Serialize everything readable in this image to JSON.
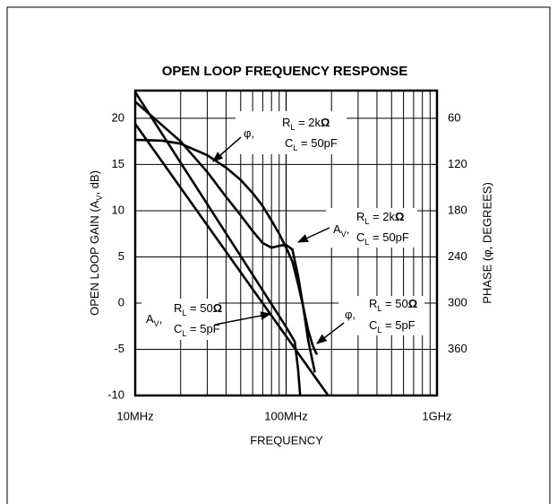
{
  "chart_data": {
    "type": "line",
    "title": "OPEN LOOP FREQUENCY RESPONSE",
    "xlabel": "FREQUENCY",
    "ylabel": [
      "OPEN LOOP GAIN (A",
      "V",
      ", dB)"
    ],
    "y2label": "PHASE (φ, DEGREES)",
    "xscale": "log",
    "xlim": [
      10,
      1000
    ],
    "xticks": [
      {
        "value": 10,
        "label": "10MHz"
      },
      {
        "value": 100,
        "label": "100MHz"
      },
      {
        "value": 1000,
        "label": "1GHz"
      }
    ],
    "ylim": [
      -10,
      23
    ],
    "yticks": [
      -10,
      -5,
      0,
      5,
      10,
      15,
      20
    ],
    "y2lim": [
      420,
      24
    ],
    "y2ticks": [
      60,
      120,
      180,
      240,
      300,
      360
    ],
    "grid": true,
    "series": [
      {
        "color": "#000000",
        "label": {
          "symbol": [
            "A",
            "V",
            ","
          ],
          "lines": [
            [
              "R",
              "L",
              " = 2k",
              "Ω"
            ],
            [
              "C",
              "L",
              " = 50pF"
            ]
          ]
        },
        "x": [
          10,
          20,
          30,
          40,
          50,
          60,
          70,
          80,
          90,
          100,
          110,
          120,
          130,
          140,
          155
        ],
        "values": [
          21.8,
          17.5,
          14.2,
          11.5,
          9.5,
          7.8,
          6.5,
          6.0,
          6.2,
          6.3,
          5.8,
          3,
          -0.5,
          -4,
          -7.5
        ]
      },
      {
        "color": "#000000",
        "axis": "y2",
        "label": {
          "symbol": [
            "φ,"
          ],
          "lines": [
            [
              "R",
              "L",
              " = 2k",
              "Ω"
            ],
            [
              "C",
              "L",
              " = 50pF"
            ]
          ]
        },
        "x": [
          10,
          15,
          20,
          30,
          40,
          50,
          60,
          70,
          80,
          90,
          100,
          110,
          120,
          130,
          140,
          150,
          160
        ],
        "values": [
          88,
          89,
          93,
          108,
          124,
          140,
          157,
          174,
          193,
          210,
          228,
          246,
          275,
          305,
          335,
          355,
          367
        ]
      },
      {
        "color": "#000000",
        "label": {
          "symbol": [
            "A",
            "V",
            ","
          ],
          "lines": [
            [
              "R",
              "L",
              " = 50",
              "Ω"
            ],
            [
              "C",
              "L",
              " = 5pF"
            ]
          ]
        },
        "x": [
          10,
          190
        ],
        "values": [
          19.4,
          -10
        ]
      },
      {
        "color": "#000000",
        "axis": "y2",
        "label": {
          "symbol": [
            "φ,"
          ],
          "lines": [
            [
              "R",
              "L",
              " = 50",
              "Ω"
            ],
            [
              "C",
              "L",
              " = 5pF"
            ]
          ]
        },
        "x": [
          10,
          50,
          100,
          114,
          120,
          124
        ],
        "values": [
          26,
          239,
          331,
          350,
          385,
          420
        ]
      }
    ]
  }
}
